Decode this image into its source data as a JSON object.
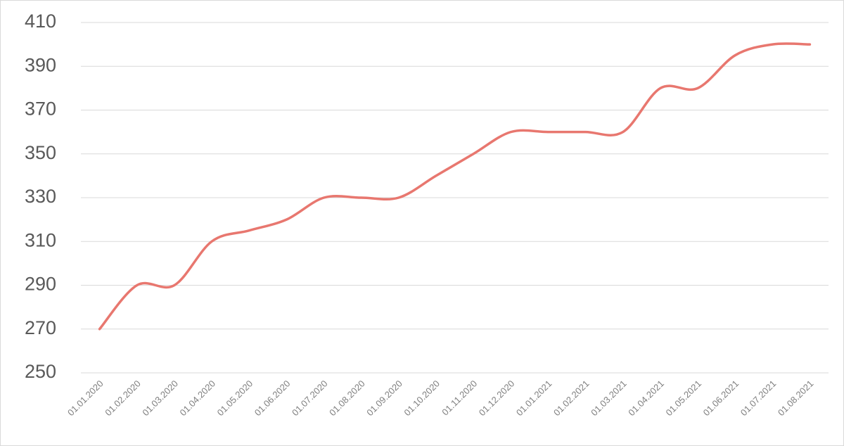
{
  "chart_data": {
    "type": "line",
    "categories": [
      "01.01.2020",
      "01.02.2020",
      "01.03.2020",
      "01.04.2020",
      "01.05.2020",
      "01.06.2020",
      "01.07.2020",
      "01.08.2020",
      "01.09.2020",
      "01.10.2020",
      "01.11.2020",
      "01.12.2020",
      "01.01.2021",
      "01.02.2021",
      "01.03.2021",
      "01.04.2021",
      "01.05.2021",
      "01.06.2021",
      "01.07.2021",
      "01.08.2021"
    ],
    "values": [
      270,
      290,
      290,
      310,
      315,
      320,
      330,
      330,
      330,
      340,
      350,
      360,
      360,
      360,
      360,
      380,
      380,
      395,
      400,
      400
    ],
    "color": "#e8776f",
    "ylim": [
      250,
      410
    ],
    "yticks": [
      250,
      270,
      290,
      310,
      330,
      350,
      370,
      390,
      410
    ],
    "grid": true
  }
}
